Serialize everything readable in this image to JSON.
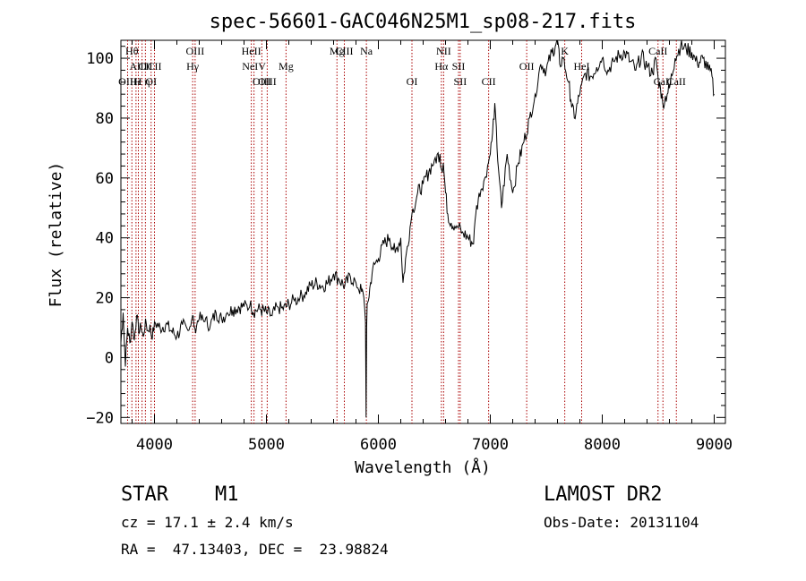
{
  "chart_data": {
    "type": "line",
    "title": "spec-56601-GAC046N25M1_sp08-217.fits",
    "xlabel": "Wavelength (Å)",
    "ylabel": "Flux (relative)",
    "xlim": [
      3700,
      9100
    ],
    "ylim": [
      -22,
      106
    ],
    "x_ticks": [
      4000,
      5000,
      6000,
      7000,
      8000,
      9000
    ],
    "y_ticks": [
      -20,
      0,
      20,
      40,
      60,
      80,
      100
    ],
    "grid": false,
    "line_color": "#000000",
    "marker_color": "#aa0000",
    "series": [
      {
        "x": [
          3700,
          3720,
          3740,
          3760,
          3780,
          3800,
          3820,
          3840,
          3860,
          3880,
          3900,
          3920,
          3940,
          3960,
          3980,
          4000,
          4050,
          4100,
          4150,
          4200,
          4250,
          4300,
          4340,
          4360,
          4400,
          4450,
          4500,
          4550,
          4600,
          4650,
          4700,
          4750,
          4800,
          4850,
          4860,
          4880,
          4900,
          4950,
          5000,
          5050,
          5100,
          5150,
          5200,
          5250,
          5300,
          5350,
          5400,
          5450,
          5500,
          5550,
          5600,
          5650,
          5700,
          5750,
          5800,
          5850,
          5870,
          5885,
          5890,
          5895,
          5900,
          5910,
          5930,
          5950,
          6000,
          6050,
          6100,
          6150,
          6200,
          6220,
          6250,
          6300,
          6350,
          6400,
          6450,
          6500,
          6550,
          6563,
          6580,
          6600,
          6620,
          6650,
          6700,
          6750,
          6800,
          6850,
          6870,
          6900,
          6950,
          7000,
          7020,
          7040,
          7060,
          7080,
          7100,
          7150,
          7200,
          7250,
          7300,
          7350,
          7400,
          7450,
          7500,
          7550,
          7580,
          7600,
          7620,
          7650,
          7700,
          7720,
          7750,
          7780,
          7800,
          7850,
          7900,
          7950,
          8000,
          8050,
          8100,
          8150,
          8200,
          8250,
          8300,
          8350,
          8400,
          8450,
          8480,
          8500,
          8520,
          8540,
          8580,
          8600,
          8650,
          8700,
          8750,
          8800,
          8850,
          8900,
          8950,
          8980,
          9000
        ],
        "y": [
          5,
          15,
          -3,
          10,
          5,
          12,
          6,
          14,
          8,
          10,
          7,
          13,
          9,
          11,
          6,
          12,
          10,
          11,
          9,
          7,
          11,
          9,
          14,
          10,
          13,
          12,
          11,
          15,
          13,
          15,
          16,
          17,
          17,
          17,
          19,
          15,
          16,
          16,
          15,
          14,
          17,
          16,
          18,
          19,
          20,
          22,
          24,
          25,
          24,
          25,
          28,
          26,
          24,
          27,
          25,
          22,
          20,
          12,
          -20,
          10,
          18,
          19,
          25,
          30,
          33,
          38,
          40,
          35,
          40,
          25,
          35,
          48,
          55,
          58,
          62,
          66,
          68,
          63,
          65,
          55,
          48,
          45,
          44,
          42,
          40,
          38,
          48,
          55,
          60,
          68,
          75,
          85,
          70,
          60,
          50,
          68,
          55,
          65,
          72,
          80,
          88,
          98,
          96,
          102,
          104,
          106,
          98,
          100,
          92,
          86,
          80,
          85,
          88,
          95,
          94,
          97,
          100,
          96,
          99,
          101,
          102,
          99,
          96,
          101,
          97,
          95,
          100,
          93,
          90,
          85,
          88,
          90,
          100,
          104,
          103,
          102,
          98,
          100,
          96,
          94,
          88
        ]
      }
    ],
    "lines": [
      {
        "label": "Hθ",
        "x": 3798,
        "row": 1
      },
      {
        "label": "AlII",
        "x": 3856,
        "row": 2
      },
      {
        "label": "CII",
        "x": 3919,
        "row": 2
      },
      {
        "label": "OIII",
        "x": 3760,
        "row": 3
      },
      {
        "label": "Hε",
        "x": 3835,
        "row": 3
      },
      {
        "label": "H η",
        "x": 3889,
        "row": 3
      },
      {
        "label": "CII",
        "x": 4000,
        "row": 2
      },
      {
        "label": "OI",
        "x": 3970,
        "row": 3
      },
      {
        "label": "OIII",
        "x": 4363,
        "row": 1
      },
      {
        "label": "Hγ",
        "x": 4341,
        "row": 2
      },
      {
        "label": "HeII",
        "x": 4865,
        "row": 1
      },
      {
        "label": "NeIV",
        "x": 4889,
        "row": 2
      },
      {
        "label": "OIII",
        "x": 4959,
        "row": 3
      },
      {
        "label": "OIII",
        "x": 5007,
        "row": 3
      },
      {
        "label": "Mg",
        "x": 5175,
        "row": 2
      },
      {
        "label": "Mg",
        "x": 5630,
        "row": 1
      },
      {
        "label": "CIII",
        "x": 5696,
        "row": 1
      },
      {
        "label": "Na",
        "x": 5893,
        "row": 1
      },
      {
        "label": "OI",
        "x": 6300,
        "row": 3
      },
      {
        "label": "NII",
        "x": 6583,
        "row": 1
      },
      {
        "label": "Hα",
        "x": 6563,
        "row": 2
      },
      {
        "label": "SII",
        "x": 6716,
        "row": 2
      },
      {
        "label": "SII",
        "x": 6731,
        "row": 3
      },
      {
        "label": "CII",
        "x": 6985,
        "row": 3
      },
      {
        "label": "OII",
        "x": 7325,
        "row": 2
      },
      {
        "label": "K",
        "x": 7665,
        "row": 1
      },
      {
        "label": "HeI",
        "x": 7816,
        "row": 2
      },
      {
        "label": "CaII",
        "x": 8498,
        "row": 1
      },
      {
        "label": "CaII",
        "x": 8542,
        "row": 3
      },
      {
        "label": "CaII",
        "x": 8662,
        "row": 3
      }
    ]
  },
  "info": {
    "type": "STAR",
    "subclass": "M1",
    "survey": "LAMOST DR2",
    "cz": "cz = 17.1 ± 2.4 km/s",
    "obs_date": "Obs-Date: 20131104",
    "coords": "RA =  47.13403, DEC =  23.98824"
  }
}
